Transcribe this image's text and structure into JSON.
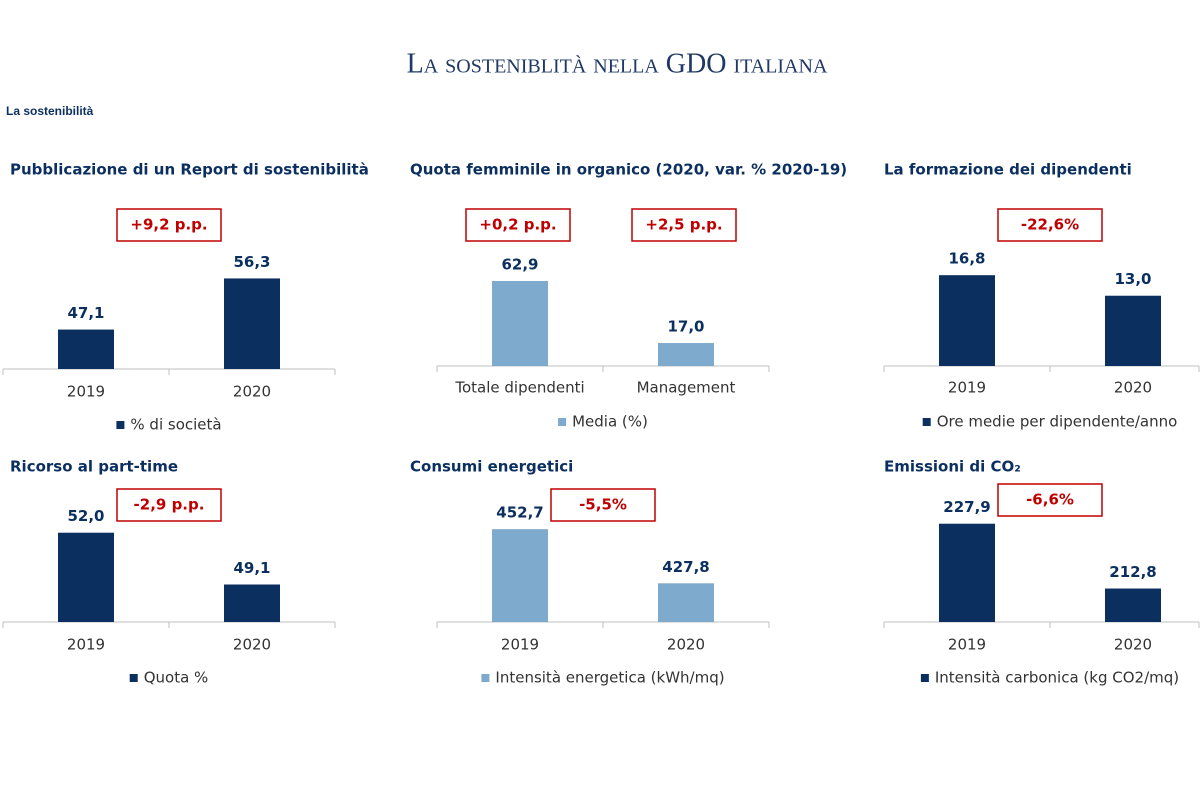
{
  "title": "La sosteniblità nella GDO italiana",
  "subtitle": "La sostenibilità",
  "chart_data": [
    {
      "type": "bar",
      "title": "Pubblicazione di un Report di sostenibilità",
      "categories": [
        "2019",
        "2020"
      ],
      "series": [
        {
          "name": "% di società",
          "color": "#0b2f5f",
          "values": [
            47.1,
            56.3
          ],
          "value_labels": [
            "47,1",
            "56,3"
          ]
        }
      ],
      "annotations": [
        "+9,2 p.p."
      ],
      "ylim": [
        40,
        58
      ]
    },
    {
      "type": "bar",
      "title": "Quota femminile in organico (2020, var. % 2020-19)",
      "categories": [
        "Totale dipendenti",
        "Management"
      ],
      "series": [
        {
          "name": "Media (%)",
          "color": "#7eaacd",
          "values": [
            62.9,
            17.0
          ],
          "value_labels": [
            "62,9",
            "17,0"
          ]
        }
      ],
      "annotations": [
        "+0,2 p.p.",
        "+2,5 p.p."
      ],
      "ylim": [
        0,
        74
      ]
    },
    {
      "type": "bar",
      "title": "La formazione dei dipendenti",
      "categories": [
        "2019",
        "2020"
      ],
      "series": [
        {
          "name": "Ore medie per dipendente/anno",
          "color": "#0b2f5f",
          "values": [
            16.8,
            13.0
          ],
          "value_labels": [
            "16,8",
            "13,0"
          ]
        }
      ],
      "annotations": [
        "-22,6%"
      ],
      "ylim": [
        0,
        18.5
      ]
    },
    {
      "type": "bar",
      "title": "Ricorso al part-time",
      "categories": [
        "2019",
        "2020"
      ],
      "series": [
        {
          "name": "Quota %",
          "color": "#0b2f5f",
          "values": [
            52.0,
            49.1
          ],
          "value_labels": [
            "52,0",
            "49,1"
          ]
        }
      ],
      "annotations": [
        "-2,9 p.p."
      ],
      "ylim": [
        47,
        52.6
      ]
    },
    {
      "type": "bar",
      "title": "Consumi energetici",
      "categories": [
        "2019",
        "2020"
      ],
      "series": [
        {
          "name": "Intensità energetica (kWh/mq)",
          "color": "#7eaacd",
          "values": [
            452.7,
            427.8
          ],
          "value_labels": [
            "452,7",
            "427,8"
          ]
        }
      ],
      "annotations": [
        "-5,5%"
      ],
      "ylim": [
        410,
        456
      ]
    },
    {
      "type": "bar",
      "title": "Emissioni di CO₂",
      "categories": [
        "2019",
        "2020"
      ],
      "series": [
        {
          "name": "Intensità carbonica (kg CO2/mq)",
          "color": "#0b2f5f",
          "values": [
            227.9,
            212.8
          ],
          "value_labels": [
            "227,9",
            "212,8"
          ]
        }
      ],
      "annotations": [
        "-6,6%"
      ],
      "ylim": [
        205,
        228.3
      ]
    }
  ]
}
